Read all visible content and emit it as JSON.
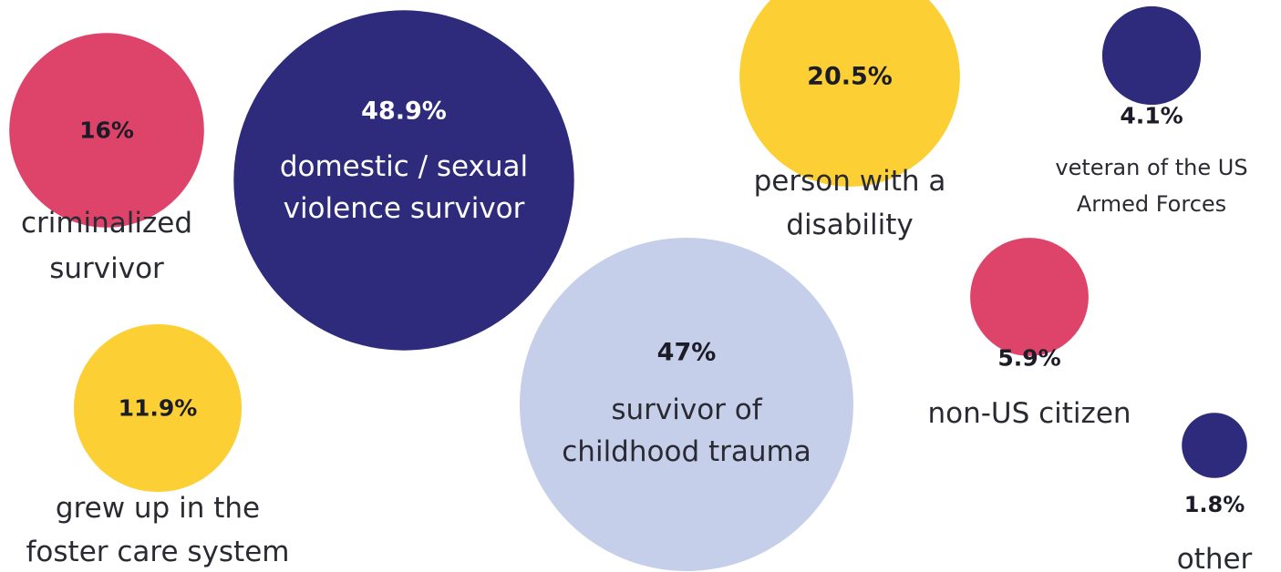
{
  "chart_data": {
    "type": "bubble",
    "title": "",
    "colors": {
      "navy": "#2e2b7c",
      "pink": "#de4469",
      "yellow": "#fcd035",
      "lavender": "#c6cfe9"
    },
    "items": [
      {
        "id": "criminalized-survivor",
        "value": 16,
        "value_label": "16%",
        "label_lines": [
          "criminalized",
          "survivor"
        ],
        "color": "#de4469"
      },
      {
        "id": "domestic-sexual-violence-survivor",
        "value": 48.9,
        "value_label": "48.9%",
        "label_lines": [
          "domestic / sexual",
          "violence survivor"
        ],
        "color": "#2e2b7c"
      },
      {
        "id": "person-with-a-disability",
        "value": 20.5,
        "value_label": "20.5%",
        "label_lines": [
          "person with a",
          "disability"
        ],
        "color": "#fcd035"
      },
      {
        "id": "veteran",
        "value": 4.1,
        "value_label": "4.1%",
        "label_lines": [
          "veteran of the US",
          "Armed Forces"
        ],
        "color": "#2e2b7c"
      },
      {
        "id": "foster-care",
        "value": 11.9,
        "value_label": "11.9%",
        "label_lines": [
          "grew up in the",
          "foster care system"
        ],
        "color": "#fcd035"
      },
      {
        "id": "childhood-trauma",
        "value": 47,
        "value_label": "47%",
        "label_lines": [
          "survivor of",
          "childhood trauma"
        ],
        "color": "#c6cfe9"
      },
      {
        "id": "non-us-citizen",
        "value": 5.9,
        "value_label": "5.9%",
        "label_lines": [
          "non-US citizen"
        ],
        "color": "#de4469"
      },
      {
        "id": "other",
        "value": 1.8,
        "value_label": "1.8%",
        "label_lines": [
          "other"
        ],
        "color": "#2e2b7c"
      }
    ]
  }
}
